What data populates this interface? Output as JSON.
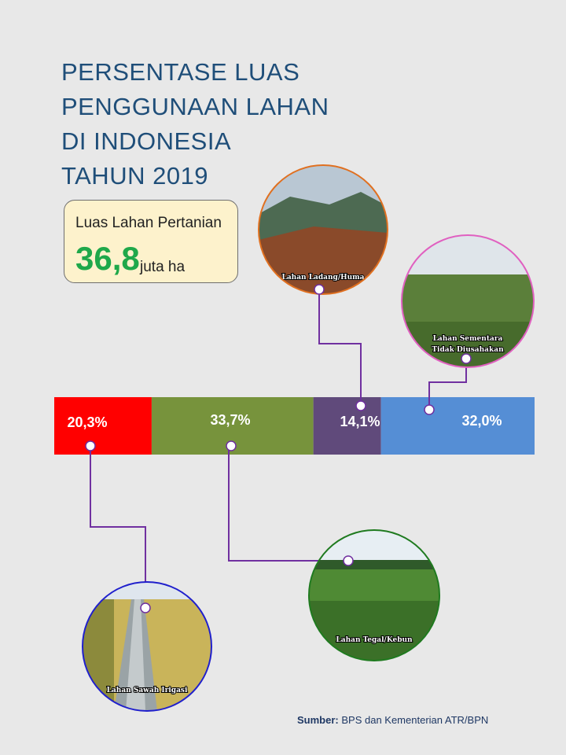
{
  "title_lines": [
    "PERSENTASE LUAS",
    "PENGGUNAAN LAHAN",
    "DI INDONESIA",
    "TAHUN 2019"
  ],
  "stat": {
    "label": "Luas Lahan Pertanian",
    "value": "36,8",
    "unit": "juta ha"
  },
  "chart_data": {
    "type": "bar",
    "orientation": "horizontal-stacked",
    "categories": [
      "Lahan Sawah Irigasi",
      "Lahan Tegal/Kebun",
      "Lahan Ladang/Huma",
      "Lahan Sementara Tidak Diusahakan"
    ],
    "values": [
      20.3,
      33.7,
      14.1,
      32.0
    ],
    "value_labels": [
      "20,3%",
      "33,7%",
      "14,1%",
      "32,0%"
    ],
    "colors": [
      "#ff0000",
      "#77933c",
      "#604a7b",
      "#558ed5"
    ],
    "photo_labels": [
      [
        "Lahan Sawah Irigasi"
      ],
      [
        "Lahan Tegal/Kebun"
      ],
      [
        "Lahan Ladang/Huma"
      ],
      [
        "Lahan Sementara",
        "Tidak Diusahakan"
      ]
    ],
    "photo_positions": [
      "bottom",
      "bottom",
      "top",
      "top"
    ],
    "photo_border_colors": [
      "#1f1fcc",
      "#1f7a1f",
      "#e07020",
      "#e060c0"
    ],
    "connector_color": "#7030a0"
  },
  "source": {
    "label": "Sumber:",
    "text": "BPS dan Kementerian  ATR/BPN"
  }
}
